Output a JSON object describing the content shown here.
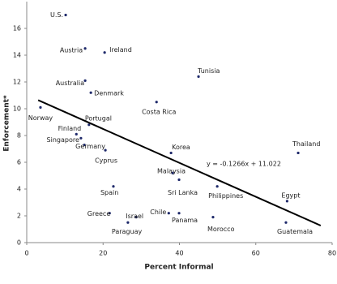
{
  "chart_data": {
    "type": "scatter",
    "x_label": "Percent Informal",
    "y_label": "Enforcement*",
    "labels": [
      "U.S.",
      "Austria",
      "Ireland",
      "Australia",
      "Denmark",
      "Tunisia",
      "Norway",
      "Costa Rica",
      "Portugal",
      "Finland",
      "Singapore",
      "Germany",
      "Cyprus",
      "Korea",
      "Thailand",
      "Malaysia",
      "Sri Lanka",
      "Spain",
      "Philippines",
      "Egypt",
      "Greece",
      "Israel",
      "Chile",
      "Panama",
      "Paraguay",
      "Morocco",
      "Guatemala"
    ],
    "x": [
      10.2,
      15.3,
      20.4,
      15.3,
      16.8,
      45.0,
      3.6,
      34.0,
      16.3,
      13.0,
      14.2,
      15.1,
      20.6,
      37.8,
      71.1,
      38.2,
      39.9,
      22.7,
      49.9,
      68.2,
      21.7,
      28.7,
      37.2,
      39.9,
      26.5,
      48.8,
      67.9
    ],
    "values": [
      17.0,
      14.5,
      14.2,
      12.1,
      11.2,
      12.4,
      10.1,
      10.5,
      8.8,
      8.1,
      7.8,
      7.3,
      6.9,
      6.7,
      6.7,
      5.2,
      4.7,
      4.2,
      4.2,
      3.1,
      2.2,
      1.9,
      2.2,
      2.2,
      1.5,
      1.9,
      1.5
    ],
    "color": "#1f2a6b",
    "trendline": {
      "label": "y = -0.1266x + 11.022",
      "slope": -0.1266,
      "intercept": 11.022,
      "xlim": [
        3,
        77
      ]
    },
    "xlim": [
      0,
      80
    ],
    "xticks": [
      0,
      20,
      40,
      60,
      80
    ],
    "ylim": [
      0,
      18
    ],
    "yticks": [
      0,
      2,
      4,
      6,
      8,
      10,
      12,
      14,
      16
    ]
  }
}
